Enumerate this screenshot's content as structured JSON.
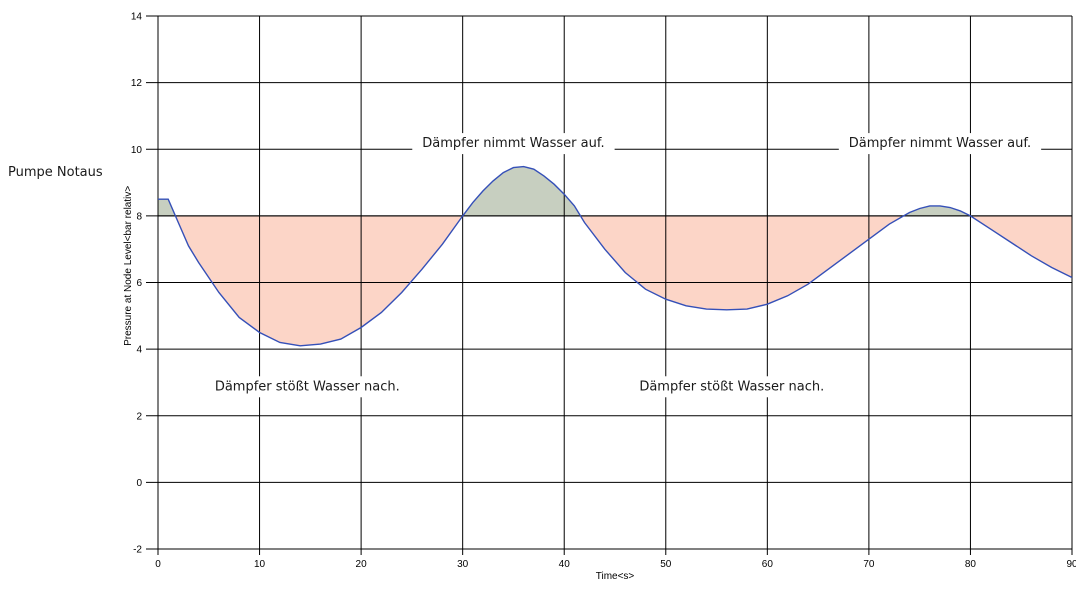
{
  "chart_data": {
    "type": "area",
    "x": [
      0,
      1,
      2,
      3,
      4,
      6,
      8,
      10,
      12,
      14,
      16,
      18,
      20,
      22,
      24,
      26,
      28,
      30,
      31,
      32,
      33,
      34,
      35,
      36,
      37,
      38,
      39,
      40,
      41,
      42,
      44,
      46,
      48,
      50,
      52,
      54,
      56,
      58,
      60,
      62,
      64,
      66,
      68,
      70,
      72,
      74,
      75,
      76,
      77,
      78,
      79,
      80,
      82,
      84,
      86,
      88,
      90
    ],
    "series": [
      {
        "values": [
          8.5,
          8.5,
          7.8,
          7.1,
          6.6,
          5.7,
          4.95,
          4.5,
          4.2,
          4.1,
          4.15,
          4.3,
          4.65,
          5.1,
          5.7,
          6.4,
          7.15,
          8.0,
          8.4,
          8.75,
          9.05,
          9.3,
          9.45,
          9.48,
          9.4,
          9.2,
          8.95,
          8.65,
          8.3,
          7.8,
          7.0,
          6.3,
          5.8,
          5.5,
          5.3,
          5.2,
          5.18,
          5.2,
          5.35,
          5.6,
          5.95,
          6.4,
          6.85,
          7.3,
          7.75,
          8.1,
          8.22,
          8.3,
          8.3,
          8.25,
          8.15,
          8.0,
          7.6,
          7.2,
          6.8,
          6.45,
          6.15
        ]
      }
    ],
    "reference_line": 8,
    "fill_above_color": "#c7cfc0",
    "fill_below_color": "#fcd5c7",
    "line_color": "#3550b8",
    "reference_line_color": "#000000",
    "xlabel": "Time<s>",
    "ylabel": "Pressure at Node Level<bar relativ>",
    "xlim": [
      0,
      90
    ],
    "ylim": [
      -2,
      14
    ],
    "xticks": [
      0,
      10,
      20,
      30,
      40,
      50,
      60,
      70,
      80,
      90
    ],
    "yticks": [
      -2,
      0,
      2,
      4,
      6,
      8,
      10,
      12,
      14
    ],
    "grid": true,
    "annotations": [
      {
        "text": "Dämpfer nimmt Wasser auf.",
        "x": 35,
        "y": 10.2
      },
      {
        "text": "Dämpfer nimmt Wasser auf.",
        "x": 77,
        "y": 10.2
      },
      {
        "text": "Dämpfer stößt Wasser nach.",
        "x": 14.7,
        "y": 2.9
      },
      {
        "text": "Dämpfer stößt Wasser nach.",
        "x": 56.5,
        "y": 2.9
      }
    ],
    "side_label": "Pumpe Notaus"
  }
}
